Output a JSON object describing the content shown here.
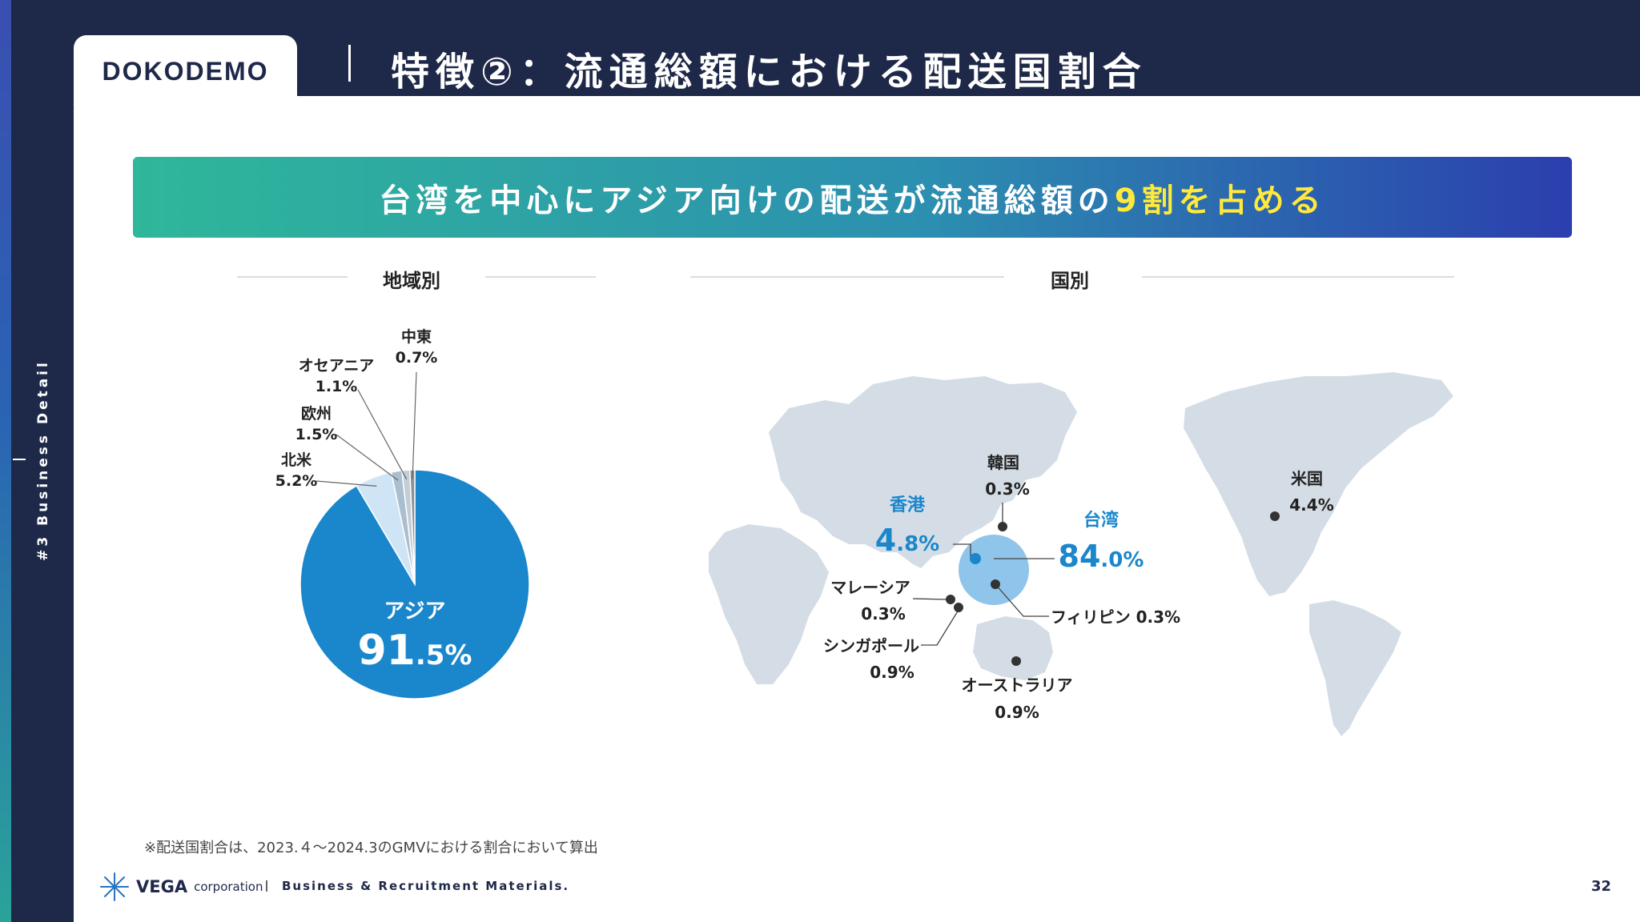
{
  "side_label": "#3 Business Detail",
  "logo": "DOKODEMO",
  "page_title": "特徴②：流通総額における配送国割合",
  "banner": {
    "prefix": "台湾を中心にアジア向けの配送が流通総額の",
    "highlight": "9割を占める"
  },
  "sections": {
    "region": "地域別",
    "country": "国別"
  },
  "colors": {
    "brand_navy": "#1e2848",
    "accent_blue": "#1a86cc",
    "highlight_yellow": "#ffe93a"
  },
  "chart_data": [
    {
      "type": "pie",
      "title": "地域別",
      "slices": [
        {
          "name": "アジア",
          "pct_main": "91.5",
          "value": 91.5,
          "color": "#1a86cc"
        },
        {
          "name": "北米",
          "label": "5.2%",
          "value": 5.2,
          "color": "#cfe4f5"
        },
        {
          "name": "欧州",
          "label": "1.5%",
          "value": 1.5,
          "color": "#a9bfd0"
        },
        {
          "name": "オセアニア",
          "label": "1.1%",
          "value": 1.1,
          "color": "#c4ccd4"
        },
        {
          "name": "中東",
          "label": "0.7%",
          "value": 0.7,
          "color": "#8a929a"
        }
      ]
    },
    {
      "type": "map",
      "title": "国別",
      "points": [
        {
          "name": "台湾",
          "value": "84.0%",
          "value_main": "84.0",
          "highlight": true
        },
        {
          "name": "香港",
          "value": "4.8%",
          "value_main": "4.8",
          "highlight": true
        },
        {
          "name": "米国",
          "value": "4.4%"
        },
        {
          "name": "韓国",
          "value": "0.3%"
        },
        {
          "name": "マレーシア",
          "value": "0.3%"
        },
        {
          "name": "シンガポール",
          "value": "0.9%"
        },
        {
          "name": "フィリピン",
          "value": "0.3%"
        },
        {
          "name": "オーストラリア",
          "value": "0.9%"
        }
      ]
    }
  ],
  "footnote": "※配送国割合は、2023.４～2024.3のGMVにおける割合において算出",
  "footer": {
    "brand": "VEGA",
    "brand_suffix": "corporation",
    "tagline": "Business & Recruitment Materials.",
    "page_number": "32"
  }
}
